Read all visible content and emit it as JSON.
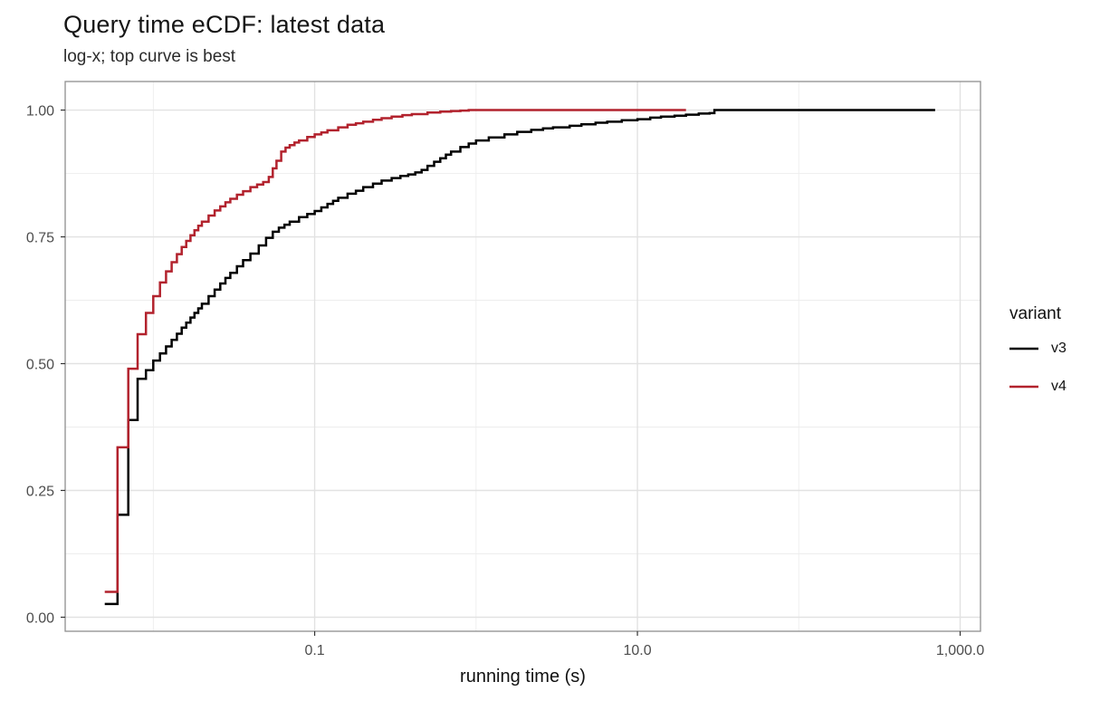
{
  "title": "Query time eCDF: latest data",
  "subtitle": "log-x; top curve is best",
  "axes": {
    "x_label": "running time (s)",
    "x_tick_labels": [
      "0.1",
      "10.0",
      "1,000.0"
    ],
    "y_tick_labels": [
      "0.00",
      "0.25",
      "0.50",
      "0.75",
      "1.00"
    ]
  },
  "legend": {
    "title": "variant",
    "items": [
      {
        "label": "v3",
        "color": "#000000"
      },
      {
        "label": "v4",
        "color": "#b2222d"
      }
    ]
  },
  "colors": {
    "grid_major": "#e2e2e2",
    "grid_minor": "#ededed",
    "panel_border": "#8f8f8f",
    "tick_mark": "#333333",
    "tick_label": "#4d4d4d"
  },
  "chart_data": {
    "type": "line",
    "subtype": "ecdf-step",
    "title": "Query time eCDF: latest data",
    "subtitle": "log-x; top curve is best",
    "xlabel": "running time (s)",
    "ylabel": "",
    "x_scale": "log10",
    "grid": true,
    "legend_position": "right",
    "legend_title": "variant",
    "x_tick_values": [
      0.1,
      10,
      1000
    ],
    "x_tick_labels": [
      "0.1",
      "10.0",
      "1,000.0"
    ],
    "x_minor_values": [
      0.01,
      1,
      100
    ],
    "y_tick_values": [
      0,
      0.25,
      0.5,
      0.75,
      1
    ],
    "y_tick_labels": [
      "0.00",
      "0.25",
      "0.50",
      "0.75",
      "1.00"
    ],
    "y_minor_values": [
      0.125,
      0.375,
      0.625,
      0.875
    ],
    "x_range_log10": [
      -2.546,
      3.126
    ],
    "y_range": [
      -0.0277,
      1.0563
    ],
    "series": [
      {
        "name": "v3",
        "color": "#000000",
        "points": [
          [
            0.005,
            0.026
          ],
          [
            0.006,
            0.202
          ],
          [
            0.007,
            0.389
          ],
          [
            0.008,
            0.47
          ],
          [
            0.009,
            0.487
          ],
          [
            0.01,
            0.506
          ],
          [
            0.011,
            0.52
          ],
          [
            0.012,
            0.534
          ],
          [
            0.013,
            0.547
          ],
          [
            0.014,
            0.559
          ],
          [
            0.015,
            0.571
          ],
          [
            0.016,
            0.581
          ],
          [
            0.017,
            0.591
          ],
          [
            0.018,
            0.6
          ],
          [
            0.019,
            0.609
          ],
          [
            0.02,
            0.618
          ],
          [
            0.022,
            0.633
          ],
          [
            0.024,
            0.646
          ],
          [
            0.026,
            0.658
          ],
          [
            0.028,
            0.669
          ],
          [
            0.03,
            0.679
          ],
          [
            0.033,
            0.692
          ],
          [
            0.036,
            0.704
          ],
          [
            0.04,
            0.717
          ],
          [
            0.045,
            0.733
          ],
          [
            0.05,
            0.748
          ],
          [
            0.055,
            0.76
          ],
          [
            0.06,
            0.768
          ],
          [
            0.065,
            0.774
          ],
          [
            0.07,
            0.78
          ],
          [
            0.08,
            0.789
          ],
          [
            0.09,
            0.795
          ],
          [
            0.1,
            0.801
          ],
          [
            0.11,
            0.808
          ],
          [
            0.12,
            0.815
          ],
          [
            0.13,
            0.821
          ],
          [
            0.14,
            0.827
          ],
          [
            0.16,
            0.835
          ],
          [
            0.18,
            0.841
          ],
          [
            0.2,
            0.848
          ],
          [
            0.23,
            0.855
          ],
          [
            0.26,
            0.861
          ],
          [
            0.3,
            0.866
          ],
          [
            0.34,
            0.87
          ],
          [
            0.38,
            0.873
          ],
          [
            0.42,
            0.877
          ],
          [
            0.46,
            0.882
          ],
          [
            0.5,
            0.89
          ],
          [
            0.55,
            0.898
          ],
          [
            0.6,
            0.905
          ],
          [
            0.65,
            0.912
          ],
          [
            0.7,
            0.918
          ],
          [
            0.8,
            0.927
          ],
          [
            0.9,
            0.934
          ],
          [
            1,
            0.94
          ],
          [
            1.2,
            0.946
          ],
          [
            1.5,
            0.952
          ],
          [
            1.8,
            0.957
          ],
          [
            2.2,
            0.961
          ],
          [
            2.6,
            0.964
          ],
          [
            3,
            0.966
          ],
          [
            3.8,
            0.969
          ],
          [
            4.5,
            0.972
          ],
          [
            5.5,
            0.975
          ],
          [
            6.5,
            0.977
          ],
          [
            8,
            0.98
          ],
          [
            10,
            0.982
          ],
          [
            12,
            0.985
          ],
          [
            14,
            0.987
          ],
          [
            17,
            0.989
          ],
          [
            20,
            0.991
          ],
          [
            24,
            0.993
          ],
          [
            28,
            0.994
          ],
          [
            30,
            1
          ],
          [
            700,
            1
          ]
        ]
      },
      {
        "name": "v4",
        "color": "#b2222d",
        "points": [
          [
            0.005,
            0.05
          ],
          [
            0.006,
            0.335
          ],
          [
            0.007,
            0.49
          ],
          [
            0.008,
            0.558
          ],
          [
            0.009,
            0.6
          ],
          [
            0.01,
            0.633
          ],
          [
            0.011,
            0.66
          ],
          [
            0.012,
            0.682
          ],
          [
            0.013,
            0.7
          ],
          [
            0.014,
            0.716
          ],
          [
            0.015,
            0.73
          ],
          [
            0.016,
            0.742
          ],
          [
            0.017,
            0.753
          ],
          [
            0.018,
            0.763
          ],
          [
            0.019,
            0.772
          ],
          [
            0.02,
            0.78
          ],
          [
            0.022,
            0.792
          ],
          [
            0.024,
            0.802
          ],
          [
            0.026,
            0.81
          ],
          [
            0.028,
            0.818
          ],
          [
            0.03,
            0.825
          ],
          [
            0.033,
            0.833
          ],
          [
            0.036,
            0.84
          ],
          [
            0.04,
            0.848
          ],
          [
            0.044,
            0.853
          ],
          [
            0.048,
            0.858
          ],
          [
            0.052,
            0.868
          ],
          [
            0.055,
            0.885
          ],
          [
            0.058,
            0.9
          ],
          [
            0.062,
            0.918
          ],
          [
            0.066,
            0.926
          ],
          [
            0.07,
            0.931
          ],
          [
            0.075,
            0.936
          ],
          [
            0.08,
            0.94
          ],
          [
            0.09,
            0.947
          ],
          [
            0.1,
            0.952
          ],
          [
            0.11,
            0.956
          ],
          [
            0.12,
            0.96
          ],
          [
            0.14,
            0.966
          ],
          [
            0.16,
            0.971
          ],
          [
            0.18,
            0.974
          ],
          [
            0.2,
            0.977
          ],
          [
            0.23,
            0.981
          ],
          [
            0.26,
            0.984
          ],
          [
            0.3,
            0.987
          ],
          [
            0.35,
            0.99
          ],
          [
            0.4,
            0.992
          ],
          [
            0.5,
            0.995
          ],
          [
            0.6,
            0.997
          ],
          [
            0.7,
            0.998
          ],
          [
            0.8,
            0.999
          ],
          [
            0.9,
            1
          ],
          [
            20,
            1
          ]
        ]
      }
    ]
  }
}
